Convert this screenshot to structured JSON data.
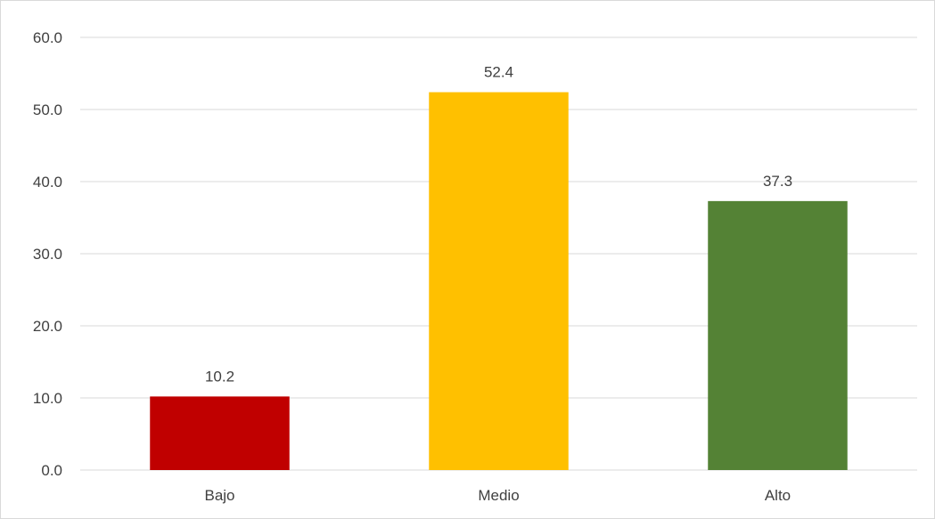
{
  "chart_data": {
    "type": "bar",
    "categories": [
      "Bajo",
      "Medio",
      "Alto"
    ],
    "values": [
      10.2,
      52.4,
      37.3
    ],
    "data_labels": [
      "10.2",
      "52.4",
      "37.3"
    ],
    "colors": [
      "#c00000",
      "#ffc000",
      "#548235"
    ],
    "title": "",
    "xlabel": "",
    "ylabel": "",
    "ylim": [
      0,
      60
    ],
    "yticks": [
      0,
      10,
      20,
      30,
      40,
      50,
      60
    ],
    "ytick_labels": [
      "0.0",
      "10.0",
      "20.0",
      "30.0",
      "40.0",
      "50.0",
      "60.0"
    ],
    "grid": true,
    "legend": "none"
  }
}
